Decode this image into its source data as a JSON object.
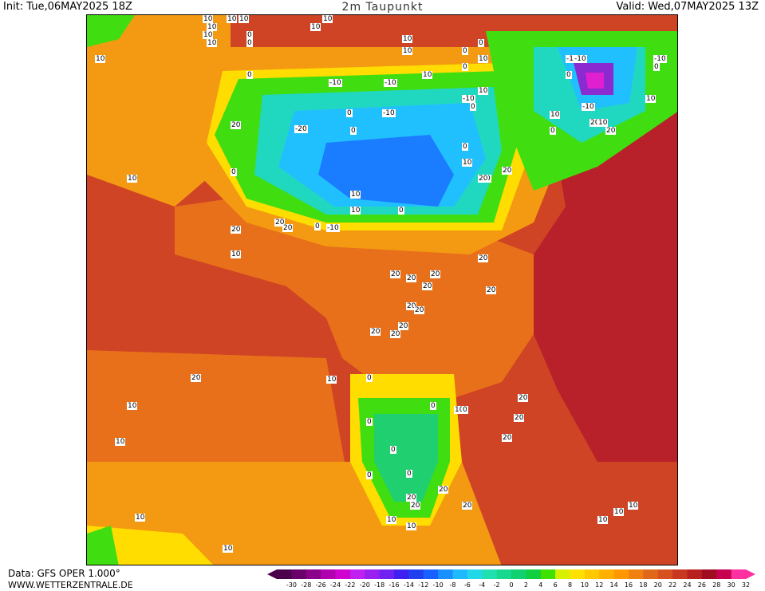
{
  "header": {
    "init": "Init: Tue,06MAY2025 18Z",
    "title": "2m Taupunkt",
    "valid": "Valid: Wed,07MAY2025 13Z"
  },
  "footer": {
    "data_source": "Data: GFS OPER 1.000°",
    "website": "WWW.WETTERZENTRALE.DE"
  },
  "legend": {
    "ticks": [
      "-30",
      "-28",
      "-26",
      "-24",
      "-22",
      "-20",
      "-18",
      "-16",
      "-14",
      "-12",
      "-10",
      "-8",
      "-6",
      "-4",
      "-2",
      "0",
      "2",
      "4",
      "6",
      "8",
      "10",
      "12",
      "14",
      "16",
      "18",
      "20",
      "22",
      "24",
      "26",
      "28",
      "30",
      "32"
    ],
    "colors": [
      "#4a004a",
      "#6a006a",
      "#8a008a",
      "#b000b0",
      "#d000d0",
      "#c020f0",
      "#9a20f0",
      "#7020f0",
      "#4020f0",
      "#2040f0",
      "#1860ff",
      "#1890ff",
      "#20b8ff",
      "#20d8e8",
      "#20e0b0",
      "#18d890",
      "#10d070",
      "#10d040",
      "#40e000",
      "#d8f000",
      "#ffe000",
      "#ffc800",
      "#ffb000",
      "#ff9800",
      "#f08010",
      "#e06818",
      "#d85020",
      "#c83820",
      "#b82020",
      "#a00c20",
      "#c80050",
      "#ff30a0"
    ]
  },
  "map": {
    "colors": {
      "ocean_warm": "#cf4425",
      "ocean_hot": "#b8202a",
      "warm": "#e8701a",
      "orange": "#f49a12",
      "yellow": "#ffdd00",
      "lime": "#40dd10",
      "green": "#20d070",
      "teal": "#20d8c0",
      "cyan": "#20c0ff",
      "blue": "#1a7cff",
      "deep_blue": "#2040e8",
      "violet": "#8a2ad0",
      "magenta": "#e020d0"
    },
    "contour_labels": [
      "10",
      "10",
      "10",
      "10",
      "10",
      "10",
      "10",
      "0",
      "0",
      "10",
      "10",
      "10",
      "10",
      "0",
      "0",
      "0",
      "10",
      "10",
      "0",
      "-10",
      "-10",
      "-10",
      "0",
      "0",
      "-20",
      "20",
      "0",
      "10",
      "10",
      "0",
      "-10",
      "0",
      "0",
      "10",
      "10",
      "0",
      "-10",
      "-10",
      "0",
      "10",
      "0",
      "-10",
      "-10",
      "-10",
      "0",
      "10",
      "-10",
      "20",
      "10",
      "20",
      "20",
      "20",
      "20",
      "10",
      "20",
      "10",
      "20",
      "20",
      "20",
      "20",
      "20",
      "20",
      "20",
      "20",
      "20",
      "20",
      "20",
      "20",
      "20",
      "20",
      "20",
      "20",
      "10",
      "10",
      "10",
      "0",
      "10",
      "0",
      "0",
      "0",
      "0",
      "0",
      "0",
      "20",
      "20",
      "20",
      "20",
      "10",
      "10",
      "10",
      "10",
      "10",
      "10",
      "10"
    ]
  }
}
